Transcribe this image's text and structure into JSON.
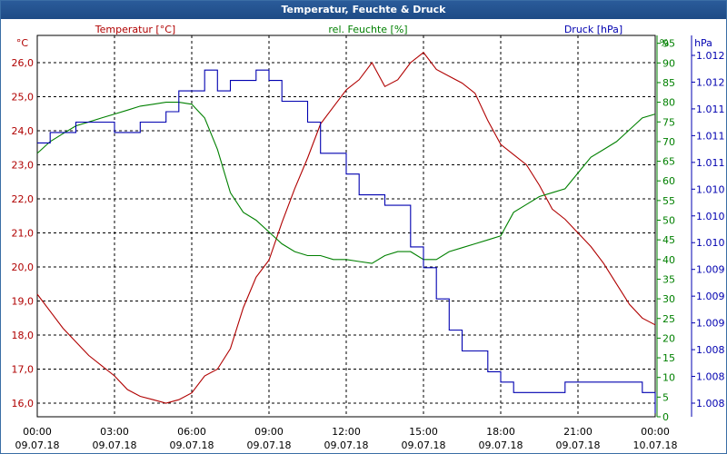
{
  "title": "Temperatur, Feuchte & Druck",
  "chart_data": {
    "type": "line",
    "axis_titles": {
      "temperature": "Temperatur [°C]",
      "humidity": "rel. Feuchte [%]",
      "pressure": "Druck [hPa]",
      "left_unit": "°C",
      "right_unit_1": "%",
      "right_unit_2": "hPa"
    },
    "x_ticks": [
      {
        "hours": 0,
        "time": "00:00",
        "date": "09.07.18"
      },
      {
        "hours": 3,
        "time": "03:00",
        "date": "09.07.18"
      },
      {
        "hours": 6,
        "time": "06:00",
        "date": "09.07.18"
      },
      {
        "hours": 9,
        "time": "09:00",
        "date": "09.07.18"
      },
      {
        "hours": 12,
        "time": "12:00",
        "date": "09.07.18"
      },
      {
        "hours": 15,
        "time": "15:00",
        "date": "09.07.18"
      },
      {
        "hours": 18,
        "time": "18:00",
        "date": "09.07.18"
      },
      {
        "hours": 21,
        "time": "21:00",
        "date": "09.07.18"
      },
      {
        "hours": 24,
        "time": "00:00",
        "date": "10.07.18"
      }
    ],
    "temperature_ticks": [
      "16,0",
      "17,0",
      "18,0",
      "19,0",
      "20,0",
      "21,0",
      "22,0",
      "23,0",
      "24,0",
      "25,0",
      "26,0"
    ],
    "humidity_ticks": [
      "0",
      "5",
      "10",
      "15",
      "20",
      "25",
      "30",
      "35",
      "40",
      "45",
      "50",
      "55",
      "60",
      "65",
      "70",
      "75",
      "80",
      "85",
      "90",
      "95"
    ],
    "pressure_ticks": [
      "1.008",
      "1.008",
      "1.008",
      "1.009",
      "1.009",
      "1.009",
      "1.010",
      "1.010",
      "1.010",
      "1.011",
      "1.011",
      "1.011",
      "1.012",
      "1.012"
    ],
    "ylim_temperature": [
      15.6,
      26.8
    ],
    "ylim_humidity": [
      0,
      97
    ],
    "ylim_pressure": [
      1007.9,
      1012.3
    ],
    "colors": {
      "temperature": "#b00000",
      "humidity": "#008000",
      "pressure": "#0000b0",
      "grid": "#000000",
      "title_bar": "#1e4b86"
    },
    "grid": true,
    "series": [
      {
        "name": "Temperatur [°C]",
        "x": [
          0,
          0.5,
          1,
          1.5,
          2,
          2.5,
          3,
          3.5,
          4,
          4.5,
          5,
          5.5,
          6,
          6.5,
          7,
          7.5,
          8,
          8.5,
          9,
          9.5,
          10,
          10.5,
          11,
          11.5,
          12,
          12.5,
          13,
          13.5,
          14,
          14.5,
          15,
          15.5,
          16,
          16.5,
          17,
          17.5,
          18,
          18.5,
          19,
          19.5,
          20,
          20.5,
          21,
          21.5,
          22,
          22.5,
          23,
          23.5,
          24
        ],
        "values": [
          19.2,
          18.7,
          18.2,
          17.8,
          17.4,
          17.1,
          16.8,
          16.4,
          16.2,
          16.1,
          16.0,
          16.1,
          16.3,
          16.8,
          17.0,
          17.6,
          18.8,
          19.7,
          20.2,
          21.3,
          22.3,
          23.2,
          24.2,
          24.7,
          25.2,
          25.5,
          26.0,
          25.3,
          25.5,
          26.0,
          26.3,
          25.8,
          25.6,
          25.4,
          25.1,
          24.3,
          23.6,
          23.3,
          23.0,
          22.4,
          21.7,
          21.4,
          21.0,
          20.6,
          20.1,
          19.5,
          18.9,
          18.5,
          18.3
        ]
      },
      {
        "name": "rel. Feuchte [%]",
        "x": [
          0,
          0.5,
          1,
          1.5,
          2,
          2.5,
          3,
          3.5,
          4,
          4.5,
          5,
          5.5,
          6,
          6.5,
          7,
          7.5,
          8,
          8.5,
          9,
          9.5,
          10,
          10.5,
          11,
          11.5,
          12,
          12.5,
          13,
          13.5,
          14,
          14.5,
          15,
          15.5,
          16,
          16.5,
          17,
          17.5,
          18,
          18.5,
          19,
          19.5,
          20,
          20.5,
          21,
          21.5,
          22,
          22.5,
          23,
          23.5,
          24
        ],
        "values": [
          67,
          70,
          72,
          74,
          75,
          76,
          77,
          78,
          79,
          79.5,
          80,
          80,
          79.5,
          76,
          68,
          57,
          52,
          50,
          47,
          44,
          42,
          41,
          41,
          40,
          40,
          39.5,
          39,
          41,
          42,
          42,
          40,
          40,
          42,
          43,
          44,
          45,
          46,
          52,
          54,
          56,
          57,
          58,
          62,
          66,
          68,
          70,
          73,
          76,
          77
        ]
      },
      {
        "name": "Druck [hPa]",
        "x": [
          0,
          0.5,
          1,
          1.5,
          2,
          2.5,
          3,
          3.5,
          4,
          4.5,
          5,
          5.5,
          6,
          6.5,
          7,
          7.5,
          8,
          8.5,
          9,
          9.5,
          10,
          10.5,
          11,
          11.5,
          12,
          12.5,
          13,
          13.5,
          14,
          14.5,
          15,
          15.5,
          16,
          16.5,
          17,
          17.5,
          18,
          18.5,
          19,
          19.5,
          20,
          20.5,
          21,
          21.5,
          22,
          22.5,
          23,
          23.5,
          24
        ],
        "values": [
          1011.06,
          1011.18,
          1011.18,
          1011.3,
          1011.3,
          1011.3,
          1011.18,
          1011.18,
          1011.3,
          1011.3,
          1011.42,
          1011.66,
          1011.66,
          1011.9,
          1011.66,
          1011.78,
          1011.78,
          1011.9,
          1011.78,
          1011.54,
          1011.54,
          1011.3,
          1010.94,
          1010.94,
          1010.7,
          1010.46,
          1010.46,
          1010.34,
          1010.34,
          1009.86,
          1009.62,
          1009.26,
          1008.9,
          1008.66,
          1008.66,
          1008.42,
          1008.3,
          1008.18,
          1008.18,
          1008.18,
          1008.18,
          1008.3,
          1008.3,
          1008.3,
          1008.3,
          1008.3,
          1008.3,
          1008.18,
          1007.94
        ]
      }
    ]
  }
}
